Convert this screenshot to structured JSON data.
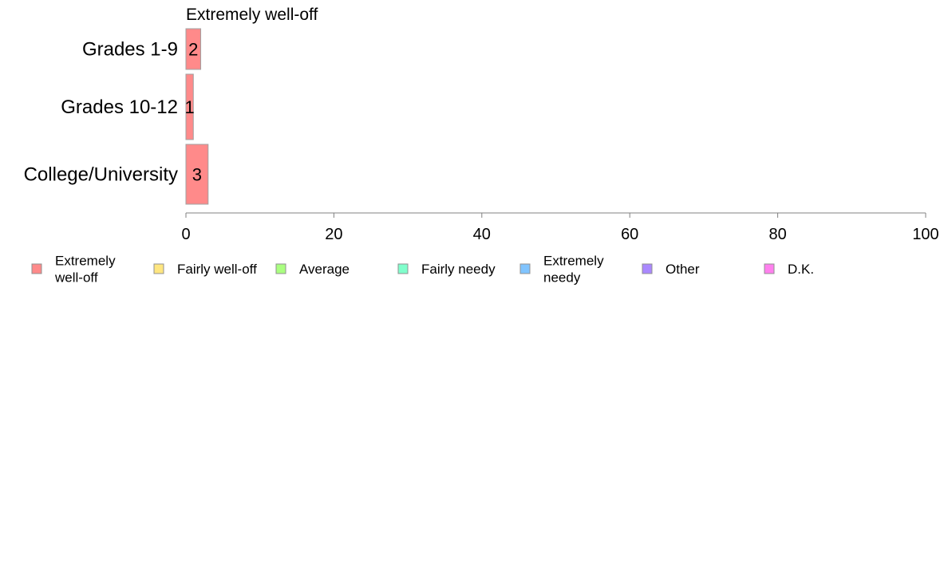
{
  "chart_data": {
    "type": "bar",
    "orientation": "horizontal",
    "categories": [
      "Grades 1-9",
      "Grades 10-12",
      "College/University"
    ],
    "series": [
      {
        "name": "Extremely well-off",
        "color": "#ff8a8a",
        "values": [
          2,
          1,
          3
        ]
      }
    ],
    "series_title": "Extremely well-off",
    "data_labels": [
      "2",
      "1",
      "3"
    ],
    "xlim": [
      0,
      100
    ],
    "xticks": [
      "0",
      "20",
      "40",
      "60",
      "80",
      "100"
    ],
    "grid": false,
    "legend_position": "bottom",
    "legend": [
      {
        "lines": [
          "Extremely",
          "well-off"
        ],
        "color": "#ff8a8a"
      },
      {
        "lines": [
          "Fairly well-off"
        ],
        "color": "#ffe680"
      },
      {
        "lines": [
          "Average"
        ],
        "color": "#aaff80"
      },
      {
        "lines": [
          "Fairly needy"
        ],
        "color": "#80ffcc"
      },
      {
        "lines": [
          "Extremely",
          "needy"
        ],
        "color": "#80c4ff"
      },
      {
        "lines": [
          "Other"
        ],
        "color": "#aa88ff"
      },
      {
        "lines": [
          "D.K."
        ],
        "color": "#ff80ee"
      }
    ]
  }
}
